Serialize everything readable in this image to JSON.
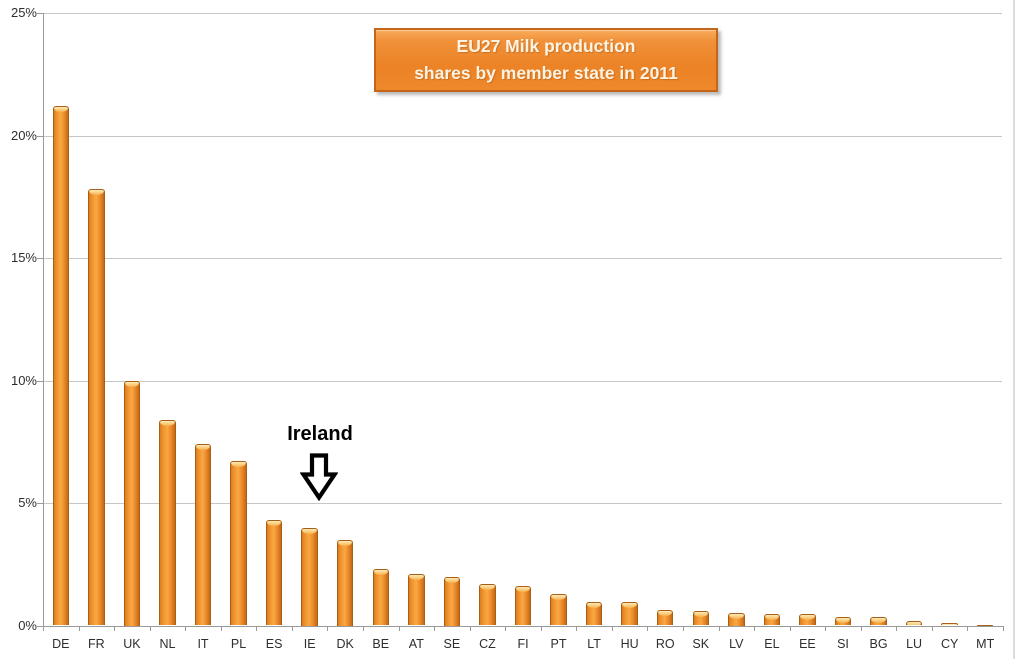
{
  "chart_data": {
    "type": "bar",
    "title_lines": [
      "EU27 Milk production",
      "shares by member state in 2011"
    ],
    "categories": [
      "DE",
      "FR",
      "UK",
      "NL",
      "IT",
      "PL",
      "ES",
      "IE",
      "DK",
      "BE",
      "AT",
      "SE",
      "CZ",
      "FI",
      "PT",
      "LT",
      "HU",
      "RO",
      "SK",
      "LV",
      "EL",
      "EE",
      "SI",
      "BG",
      "LU",
      "CY",
      "MT"
    ],
    "values": [
      21.2,
      17.8,
      10.0,
      8.4,
      7.4,
      6.7,
      4.3,
      4.0,
      3.5,
      2.3,
      2.1,
      2.0,
      1.7,
      1.6,
      1.3,
      0.95,
      0.95,
      0.65,
      0.6,
      0.5,
      0.45,
      0.45,
      0.35,
      0.33,
      0.2,
      0.1,
      0.02
    ],
    "unit": "%",
    "xlabel": "",
    "ylabel": "",
    "y_ticks": [
      "0%",
      "5%",
      "10%",
      "15%",
      "20%",
      "25%"
    ],
    "ylim": [
      0,
      25
    ],
    "grid": true,
    "legend": null,
    "annotation": {
      "label": "Ireland",
      "target_category": "IE",
      "icon": "down-block-arrow-icon"
    },
    "colors": {
      "bar_fill": "#F59B33",
      "bar_edge": "#A85E14",
      "bar_highlight": "#FDEBB8",
      "gridline": "#C6C6C6",
      "axis": "#9A9A9A",
      "title_bg": "#EC8326",
      "title_border": "#C4661A",
      "title_text": "#FDF3E3",
      "label_text": "#2E2E2E",
      "annotation_text": "#000000"
    }
  }
}
